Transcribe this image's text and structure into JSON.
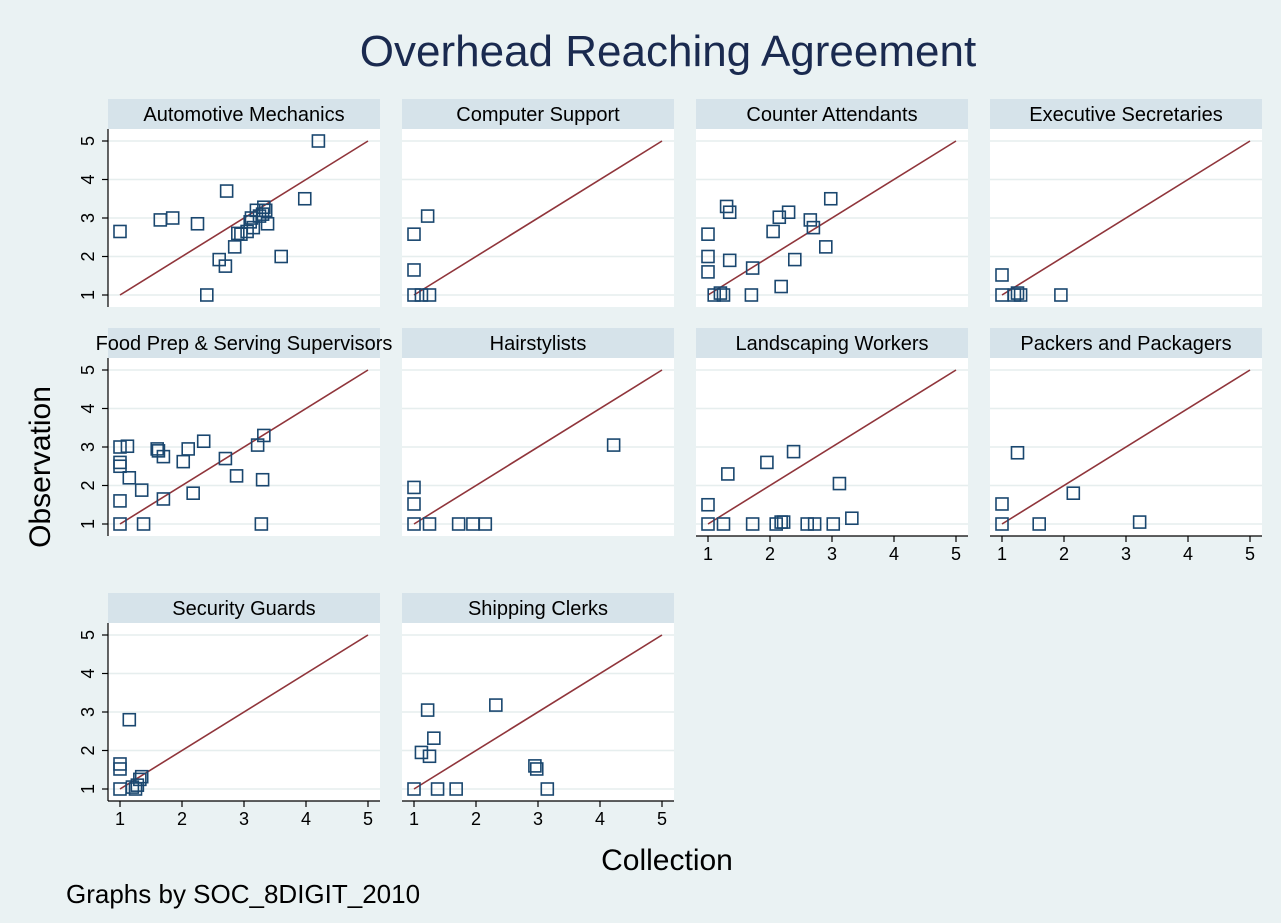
{
  "chart_data": {
    "type": "scatter",
    "title": "Overhead Reaching Agreement",
    "xlabel": "Collection",
    "ylabel": "Observation",
    "note": "Graphs by SOC_8DIGIT_2010",
    "xlim": [
      1,
      5
    ],
    "ylim": [
      1,
      5
    ],
    "ticks": [
      "1",
      "2",
      "3",
      "4",
      "5"
    ],
    "reference_line": [
      [
        1,
        1
      ],
      [
        5,
        5
      ]
    ],
    "colors": {
      "background": "#eaf2f3",
      "plot_bg": "#ffffff",
      "strip": "#d6e3ea",
      "marker": "#1a476f",
      "line": "#90353b",
      "title": "#1a2a4f",
      "grid": "#e6eeee",
      "axis": "#000000"
    },
    "panels": [
      {
        "title": "Automotive Mechanics",
        "points": [
          [
            1.0,
            2.65
          ],
          [
            1.65,
            2.95
          ],
          [
            1.85,
            3.0
          ],
          [
            2.25,
            2.85
          ],
          [
            2.4,
            1.0
          ],
          [
            2.6,
            1.92
          ],
          [
            2.7,
            1.75
          ],
          [
            2.72,
            3.7
          ],
          [
            2.85,
            2.25
          ],
          [
            2.9,
            2.6
          ],
          [
            2.95,
            2.58
          ],
          [
            3.05,
            2.65
          ],
          [
            3.1,
            2.9
          ],
          [
            3.12,
            3.0
          ],
          [
            3.15,
            2.75
          ],
          [
            3.2,
            3.2
          ],
          [
            3.25,
            3.05
          ],
          [
            3.3,
            3.1
          ],
          [
            3.32,
            3.28
          ],
          [
            3.35,
            3.2
          ],
          [
            3.38,
            2.85
          ],
          [
            3.6,
            2.0
          ],
          [
            3.98,
            3.5
          ],
          [
            4.2,
            5.0
          ]
        ]
      },
      {
        "title": "Computer Support",
        "points": [
          [
            1.0,
            2.58
          ],
          [
            1.0,
            1.65
          ],
          [
            1.0,
            1.0
          ],
          [
            1.12,
            1.0
          ],
          [
            1.25,
            1.0
          ],
          [
            1.22,
            3.05
          ]
        ]
      },
      {
        "title": "Counter Attendants",
        "points": [
          [
            1.0,
            2.58
          ],
          [
            1.0,
            2.0
          ],
          [
            1.0,
            1.6
          ],
          [
            1.1,
            1.0
          ],
          [
            1.2,
            1.05
          ],
          [
            1.25,
            1.0
          ],
          [
            1.3,
            3.3
          ],
          [
            1.35,
            3.15
          ],
          [
            1.35,
            1.9
          ],
          [
            1.7,
            1.0
          ],
          [
            1.72,
            1.7
          ],
          [
            2.05,
            2.65
          ],
          [
            2.15,
            3.02
          ],
          [
            2.18,
            1.22
          ],
          [
            2.3,
            3.15
          ],
          [
            2.4,
            1.92
          ],
          [
            2.65,
            2.95
          ],
          [
            2.7,
            2.75
          ],
          [
            2.9,
            2.25
          ],
          [
            2.98,
            3.5
          ]
        ]
      },
      {
        "title": "Executive Secretaries",
        "points": [
          [
            1.0,
            1.52
          ],
          [
            1.0,
            1.0
          ],
          [
            1.2,
            1.0
          ],
          [
            1.25,
            1.05
          ],
          [
            1.3,
            1.0
          ],
          [
            1.95,
            1.0
          ]
        ]
      },
      {
        "title": "Food Prep & Serving Supervisors",
        "points": [
          [
            1.0,
            3.0
          ],
          [
            1.0,
            2.6
          ],
          [
            1.0,
            2.5
          ],
          [
            1.0,
            1.6
          ],
          [
            1.0,
            1.0
          ],
          [
            1.12,
            3.02
          ],
          [
            1.15,
            2.2
          ],
          [
            1.35,
            1.88
          ],
          [
            1.38,
            1.0
          ],
          [
            1.6,
            2.95
          ],
          [
            1.62,
            2.9
          ],
          [
            1.7,
            2.75
          ],
          [
            1.7,
            1.65
          ],
          [
            2.02,
            2.62
          ],
          [
            2.1,
            2.95
          ],
          [
            2.18,
            1.8
          ],
          [
            2.35,
            3.15
          ],
          [
            2.7,
            2.7
          ],
          [
            2.88,
            2.25
          ],
          [
            3.22,
            3.05
          ],
          [
            3.28,
            1.0
          ],
          [
            3.3,
            2.15
          ],
          [
            3.32,
            3.3
          ]
        ]
      },
      {
        "title": "Hairstylists",
        "points": [
          [
            1.0,
            1.95
          ],
          [
            1.0,
            1.52
          ],
          [
            1.0,
            1.0
          ],
          [
            1.25,
            1.0
          ],
          [
            1.72,
            1.0
          ],
          [
            1.95,
            1.0
          ],
          [
            2.15,
            1.0
          ],
          [
            4.22,
            3.05
          ]
        ]
      },
      {
        "title": "Landscaping Workers",
        "points": [
          [
            1.0,
            1.5
          ],
          [
            1.0,
            1.0
          ],
          [
            1.25,
            1.0
          ],
          [
            1.32,
            2.3
          ],
          [
            1.72,
            1.0
          ],
          [
            1.95,
            2.6
          ],
          [
            2.1,
            1.0
          ],
          [
            2.18,
            1.05
          ],
          [
            2.22,
            1.05
          ],
          [
            2.38,
            2.88
          ],
          [
            2.6,
            1.0
          ],
          [
            2.72,
            1.0
          ],
          [
            3.02,
            1.0
          ],
          [
            3.12,
            2.05
          ],
          [
            3.32,
            1.15
          ]
        ]
      },
      {
        "title": "Packers and Packagers",
        "points": [
          [
            1.0,
            1.52
          ],
          [
            1.0,
            1.0
          ],
          [
            1.25,
            2.85
          ],
          [
            1.6,
            1.0
          ],
          [
            2.15,
            1.8
          ],
          [
            3.22,
            1.05
          ]
        ]
      },
      {
        "title": "Security Guards",
        "points": [
          [
            1.0,
            1.65
          ],
          [
            1.0,
            1.52
          ],
          [
            1.0,
            1.0
          ],
          [
            1.15,
            2.8
          ],
          [
            1.2,
            1.05
          ],
          [
            1.25,
            1.0
          ],
          [
            1.28,
            1.1
          ],
          [
            1.32,
            1.25
          ],
          [
            1.35,
            1.32
          ]
        ]
      },
      {
        "title": "Shipping Clerks",
        "points": [
          [
            1.0,
            1.0
          ],
          [
            1.12,
            1.95
          ],
          [
            1.22,
            3.05
          ],
          [
            1.25,
            1.85
          ],
          [
            1.32,
            2.32
          ],
          [
            1.38,
            1.0
          ],
          [
            1.68,
            1.0
          ],
          [
            2.32,
            3.18
          ],
          [
            2.95,
            1.6
          ],
          [
            2.98,
            1.52
          ],
          [
            3.15,
            1.0
          ]
        ]
      }
    ]
  }
}
